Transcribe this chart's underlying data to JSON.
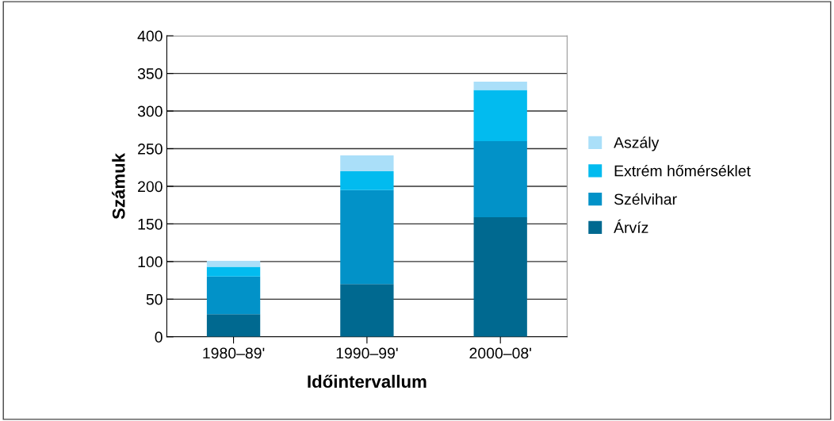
{
  "chart_data": {
    "type": "bar",
    "stacked": true,
    "xlabel": "Időintervallum",
    "ylabel": "Számuk",
    "categories": [
      "1980–89'",
      "1990–99'",
      "2000–08'"
    ],
    "series": [
      {
        "name": "Árvíz",
        "color": "#006990",
        "values": [
          30,
          70,
          159
        ]
      },
      {
        "name": "Szélvihar",
        "color": "#0292c8",
        "values": [
          50,
          125,
          101
        ]
      },
      {
        "name": "Extrém hőmérséklet",
        "color": "#02bbef",
        "values": [
          13,
          25,
          68
        ]
      },
      {
        "name": "Aszály",
        "color": "#aadff9",
        "values": [
          8,
          21,
          11
        ]
      }
    ],
    "ylim": [
      0,
      400
    ],
    "yticks": [
      0,
      50,
      100,
      150,
      200,
      250,
      300,
      350,
      400
    ],
    "grid": "y",
    "legend": "right"
  }
}
